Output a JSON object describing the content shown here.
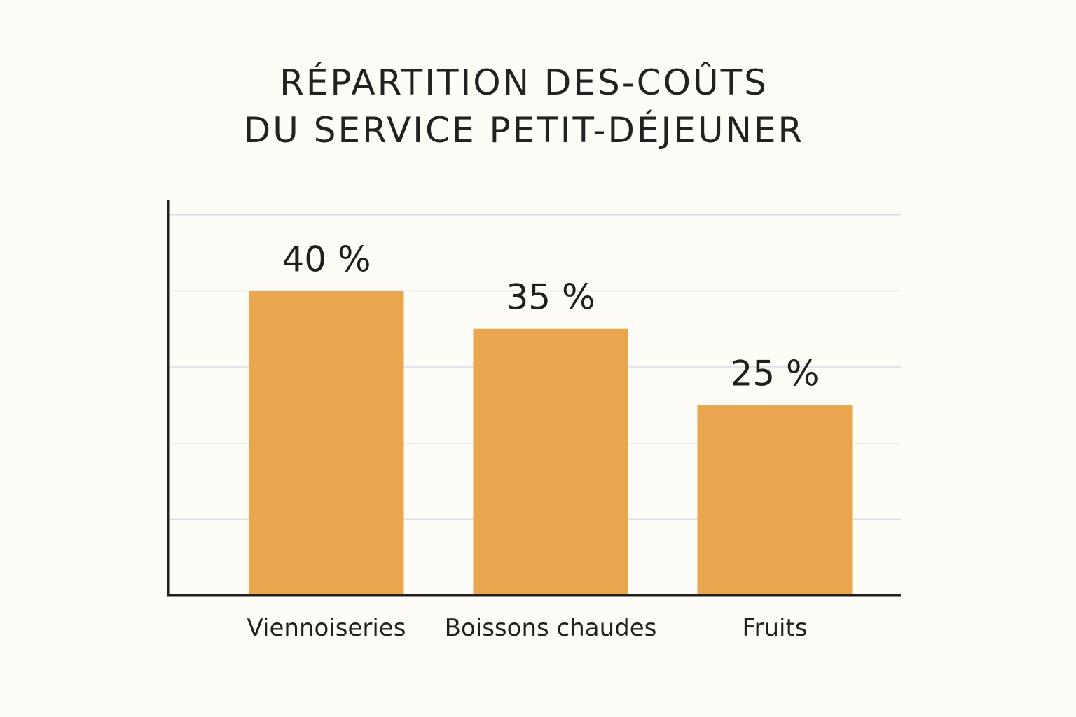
{
  "chart_data": {
    "type": "bar",
    "title": [
      "RÉPARTITION DES-COÛTS",
      "DU SERVICE PETIT-DÉJEUNER"
    ],
    "categories": [
      "Viennoiseries",
      "Boissons chaudes",
      "Fruits"
    ],
    "values": [
      40,
      35,
      25
    ],
    "value_labels": [
      "40 %",
      "35 %",
      "25 %"
    ],
    "ylim": [
      0,
      52
    ],
    "grid": true,
    "gridlines_at": [
      10,
      20,
      30,
      40,
      50
    ],
    "colors": {
      "bar": "#e9a64e",
      "background": "#fdfcf7",
      "text": "#1f1f1f",
      "grid": "#dcdde5"
    }
  }
}
